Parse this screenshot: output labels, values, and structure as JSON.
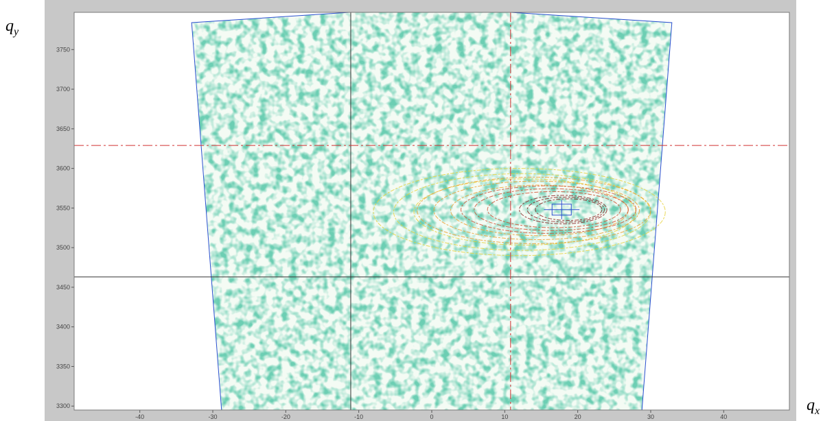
{
  "chart_data": {
    "type": "contour",
    "x_label": "q",
    "x_label_sub": "x",
    "y_label": "q",
    "y_label_sub": "y",
    "xlim": [
      -49,
      49
    ],
    "ylim": [
      3295,
      3797
    ],
    "xticks": [
      -40,
      -30,
      -20,
      -10,
      0,
      10,
      20,
      30,
      40
    ],
    "yticks": [
      3300,
      3350,
      3400,
      3450,
      3500,
      3550,
      3600,
      3650,
      3700,
      3750
    ],
    "scan_region": {
      "color": "#2a4fd0",
      "x": [
        -32.9,
        -11.2,
        10.8,
        32.9,
        28.8,
        -28.8
      ],
      "y": [
        3784,
        3797,
        3797,
        3784,
        3295,
        3295
      ]
    },
    "contours": [
      {
        "color": "#e6d23c",
        "x": 12,
        "y": 3545,
        "dx": 20,
        "dy": 55
      },
      {
        "color": "#f0a030",
        "x": 14,
        "y": 3547,
        "dx": 16,
        "dy": 42
      },
      {
        "color": "#d05030",
        "x": 16,
        "y": 3548,
        "dx": 12,
        "dy": 30
      },
      {
        "color": "#8b2020",
        "x": 18,
        "y": 3548,
        "dx": 6,
        "dy": 18
      }
    ],
    "peak": {
      "color": "#2a4fd0",
      "x": 17.8,
      "y": 3548
    },
    "black_cursor": {
      "color": "#333333",
      "x": -11.1,
      "y": 3463
    },
    "red_cursor": {
      "color": "#d03030",
      "x": 10.8,
      "y": 3629
    }
  }
}
